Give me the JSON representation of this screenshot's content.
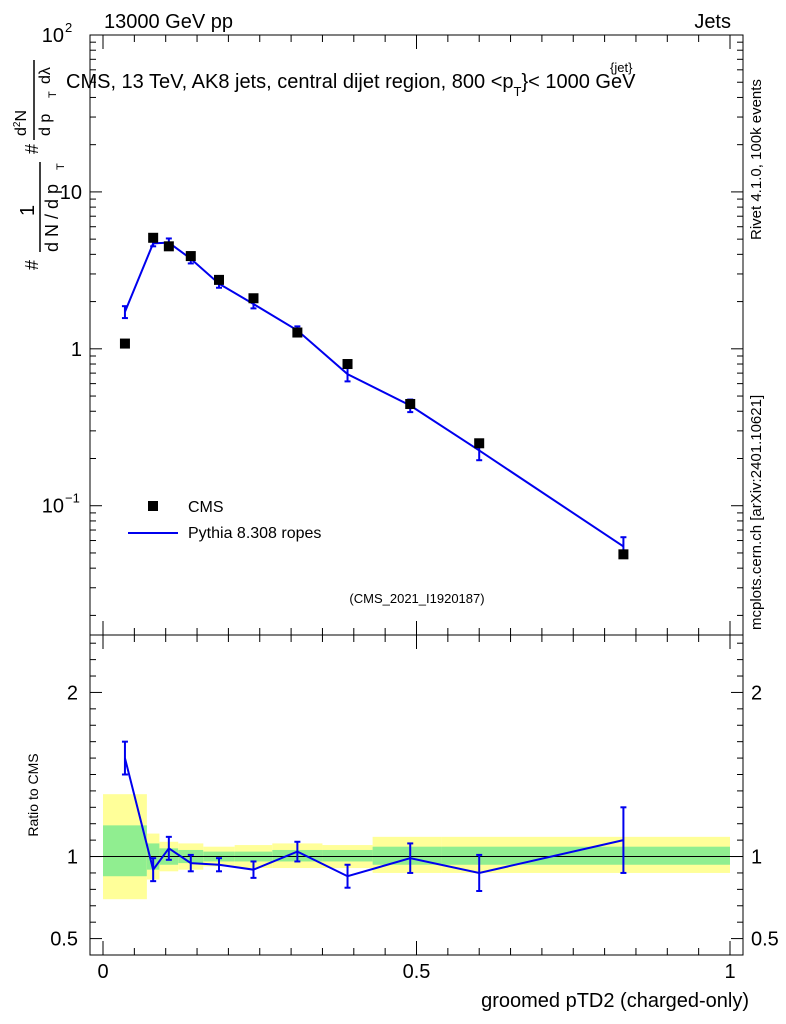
{
  "header": {
    "left": "13000 GeV pp",
    "right": "Jets"
  },
  "title": "CMS, 13 TeV, AK8 jets, central dijet region, 800 <p",
  "title_sup": "{jet}",
  "title_sub": "T",
  "title_tail": "}< 1000 GeV",
  "ylabel_main": {
    "hash1": "#",
    "frac1_top": "1",
    "frac1_bottom": "d N / d p",
    "sub_T": "T",
    "hash2": "#",
    "frac2_top": "d",
    "frac2_sup": "2",
    "frac2_topN": "N",
    "frac2_bottom": "d p",
    "frac2_lambda": "dλ"
  },
  "right_side": {
    "rivet": "Rivet 4.1.0,  100k events",
    "mcplots": "mcplots.cern.ch [arXiv:2401.10621]"
  },
  "analysis_id": "(CMS_2021_I1920187)",
  "legend": {
    "data_label": "CMS",
    "mc_label": "Pythia 8.308 ropes"
  },
  "ratio_ylabel": "Ratio to CMS",
  "xlabel": "groomed pTD2 (charged-only)",
  "colors": {
    "mc": "#0000ee",
    "band_inner": "#90ee90",
    "band_outer": "#ffff99",
    "data": "#000000"
  },
  "chart_data": [
    {
      "type": "scatter",
      "panel": "main",
      "yscale": "log",
      "xlim": [
        0,
        1
      ],
      "ylim": [
        0.015,
        100
      ],
      "y_ticks": [
        {
          "value": 0.1,
          "base": "10",
          "exp": "−1"
        },
        {
          "value": 1,
          "label": "1"
        },
        {
          "value": 10,
          "label": "10"
        },
        {
          "value": 100,
          "base": "10",
          "exp": "2"
        }
      ],
      "series": [
        {
          "name": "CMS",
          "style": "markers",
          "x": [
            0.035,
            0.08,
            0.105,
            0.14,
            0.185,
            0.24,
            0.31,
            0.39,
            0.49,
            0.6,
            0.83
          ],
          "y": [
            1.08,
            5.1,
            4.5,
            3.9,
            2.75,
            2.1,
            1.27,
            0.8,
            0.445,
            0.25,
            0.049
          ]
        },
        {
          "name": "Pythia 8.308 ropes",
          "style": "line",
          "x": [
            0.035,
            0.08,
            0.105,
            0.14,
            0.185,
            0.24,
            0.31,
            0.39,
            0.49,
            0.6,
            0.83
          ],
          "y": [
            1.72,
            4.7,
            4.75,
            3.75,
            2.6,
            1.93,
            1.31,
            0.69,
            0.435,
            0.225,
            0.055
          ],
          "err": [
            0.15,
            0.2,
            0.3,
            0.25,
            0.15,
            0.12,
            0.08,
            0.07,
            0.04,
            0.03,
            0.008
          ]
        }
      ]
    },
    {
      "type": "line",
      "panel": "ratio",
      "ylabel": "Ratio to CMS",
      "xlim": [
        0,
        1
      ],
      "ylim": [
        0.4,
        2.35
      ],
      "x_ticks": [
        0,
        0.5,
        1
      ],
      "x_tick_labels": [
        "0",
        "0.5",
        "1"
      ],
      "y_ticks": [
        0.5,
        1,
        2
      ],
      "y_tick_labels": [
        "0.5",
        "1",
        "2"
      ],
      "bands": {
        "edges": [
          0,
          0.07,
          0.09,
          0.12,
          0.16,
          0.21,
          0.27,
          0.35,
          0.43,
          0.54,
          1.0
        ],
        "inner": [
          [
            0.88,
            1.19
          ],
          [
            0.92,
            1.08
          ],
          [
            0.95,
            1.05
          ],
          [
            0.96,
            1.04
          ],
          [
            0.97,
            1.03
          ],
          [
            0.97,
            1.03
          ],
          [
            0.97,
            1.04
          ],
          [
            0.97,
            1.04
          ],
          [
            0.95,
            1.06
          ],
          [
            0.95,
            1.06
          ]
        ],
        "outer": [
          [
            0.74,
            1.38
          ],
          [
            0.86,
            1.14
          ],
          [
            0.91,
            1.09
          ],
          [
            0.92,
            1.08
          ],
          [
            0.94,
            1.06
          ],
          [
            0.93,
            1.07
          ],
          [
            0.93,
            1.08
          ],
          [
            0.93,
            1.07
          ],
          [
            0.9,
            1.12
          ],
          [
            0.9,
            1.12
          ]
        ]
      },
      "series": [
        {
          "name": "Pythia 8.308 ropes / CMS",
          "x": [
            0.035,
            0.08,
            0.105,
            0.14,
            0.185,
            0.24,
            0.31,
            0.39,
            0.49,
            0.6,
            0.83
          ],
          "y": [
            1.6,
            0.92,
            1.05,
            0.96,
            0.95,
            0.92,
            1.03,
            0.88,
            0.99,
            0.9,
            1.1
          ],
          "err": [
            0.1,
            0.07,
            0.07,
            0.05,
            0.04,
            0.05,
            0.06,
            0.07,
            0.09,
            0.11,
            0.2
          ]
        }
      ]
    }
  ]
}
